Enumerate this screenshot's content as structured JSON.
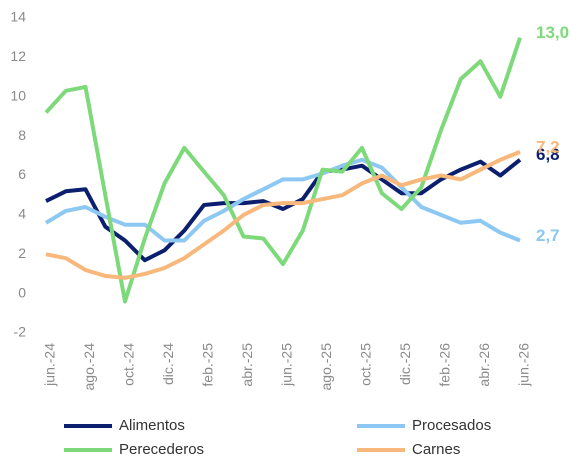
{
  "chart_data": {
    "type": "line",
    "categories": [
      "jun.-24",
      null,
      "ago.-24",
      null,
      "oct.-24",
      null,
      "dic.-24",
      null,
      "feb.-25",
      null,
      "abr.-25",
      null,
      "jun.-25",
      null,
      "ago.-25",
      null,
      "oct.-25",
      null,
      "dic.-25",
      null,
      "feb.-26",
      null,
      "abr.-26",
      null,
      "jun.-26"
    ],
    "series": [
      {
        "name": "Alimentos",
        "color": "#0b1f6e",
        "values": [
          4.7,
          5.2,
          5.3,
          3.4,
          2.7,
          1.7,
          2.2,
          3.2,
          4.5,
          4.6,
          4.6,
          4.7,
          4.3,
          4.8,
          6.2,
          6.3,
          6.5,
          5.8,
          5.1,
          5.1,
          5.8,
          6.3,
          6.7,
          6.0,
          6.8
        ],
        "value_labels": [
          null,
          null,
          null,
          null,
          null,
          null,
          null,
          null,
          null,
          null,
          null,
          null,
          null,
          null,
          null,
          null,
          null,
          null,
          null,
          null,
          null,
          null,
          null,
          null,
          "6,8"
        ]
      },
      {
        "name": "Procesados",
        "color": "#8cc8f2",
        "values": [
          3.6,
          4.2,
          4.4,
          3.9,
          3.5,
          3.5,
          2.7,
          2.7,
          3.7,
          4.2,
          4.8,
          5.3,
          5.8,
          5.8,
          6.1,
          6.5,
          6.8,
          6.4,
          5.4,
          4.4,
          4.0,
          3.6,
          3.7,
          3.1,
          2.7
        ],
        "value_labels": [
          null,
          null,
          null,
          null,
          null,
          null,
          null,
          null,
          null,
          null,
          null,
          null,
          null,
          null,
          null,
          null,
          null,
          null,
          null,
          null,
          null,
          null,
          null,
          null,
          "2,7"
        ]
      },
      {
        "name": "Perecederos",
        "color": "#7ed97a",
        "values": [
          9.2,
          10.3,
          10.5,
          5.0,
          -0.4,
          2.8,
          5.6,
          7.4,
          6.2,
          5.0,
          2.9,
          2.8,
          1.5,
          3.2,
          6.3,
          6.2,
          7.4,
          5.1,
          4.3,
          5.4,
          8.3,
          10.9,
          11.8,
          10.0,
          13.0
        ],
        "value_labels": [
          null,
          null,
          null,
          null,
          null,
          null,
          null,
          null,
          null,
          null,
          null,
          null,
          null,
          null,
          null,
          null,
          null,
          null,
          null,
          null,
          null,
          null,
          null,
          null,
          "13,0"
        ]
      },
      {
        "name": "Carnes",
        "color": "#f8b87b",
        "values": [
          2.0,
          1.8,
          1.2,
          0.9,
          0.8,
          1.0,
          1.3,
          1.8,
          2.5,
          3.2,
          4.0,
          4.5,
          4.6,
          4.6,
          4.8,
          5.0,
          5.6,
          6.0,
          5.5,
          5.8,
          6.0,
          5.8,
          6.3,
          6.8,
          7.2
        ],
        "value_labels": [
          null,
          null,
          null,
          null,
          null,
          null,
          null,
          null,
          null,
          null,
          null,
          null,
          null,
          null,
          null,
          null,
          null,
          null,
          null,
          null,
          null,
          null,
          null,
          null,
          "7,2"
        ]
      }
    ],
    "ylim": [
      -2,
      14
    ],
    "yticks": [
      -2,
      0,
      2,
      4,
      6,
      8,
      10,
      12,
      14
    ],
    "grid": false,
    "legend": "bottom"
  }
}
